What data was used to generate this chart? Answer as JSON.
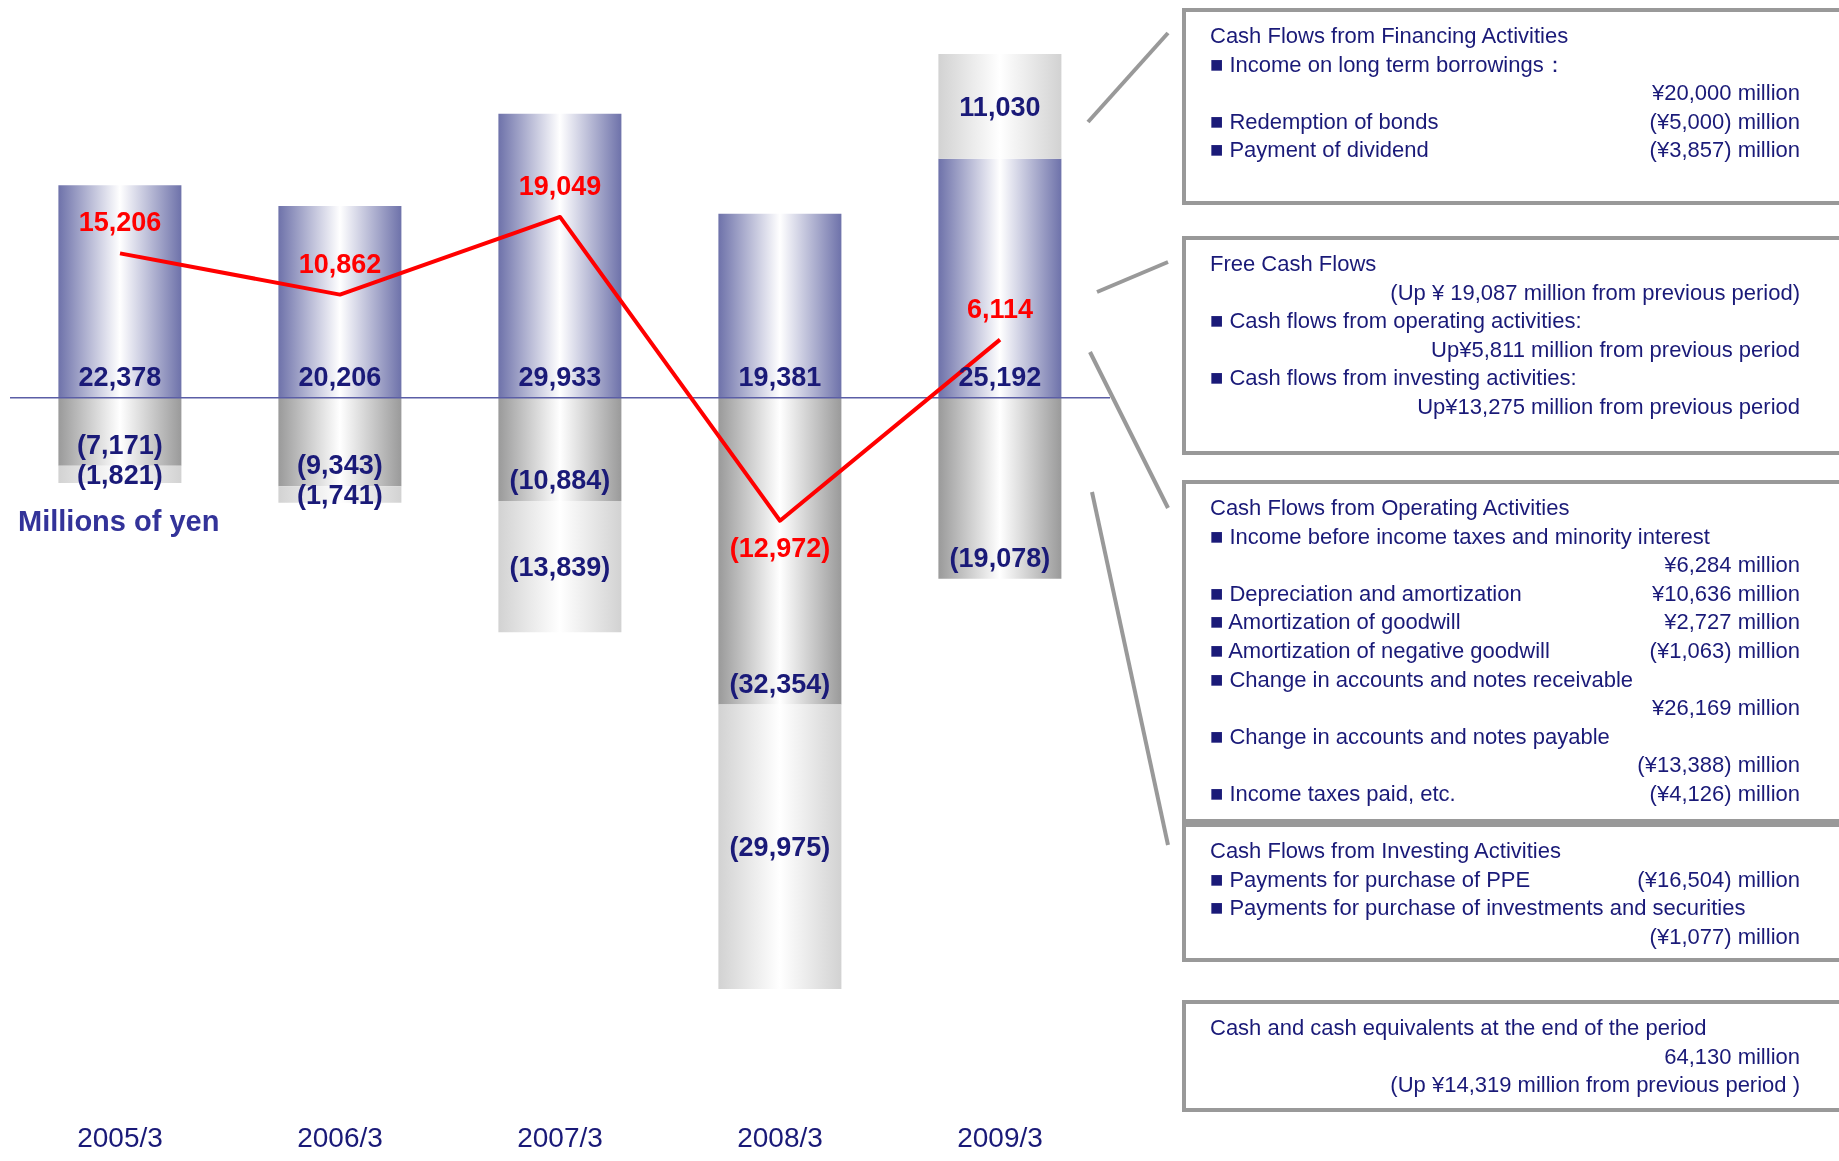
{
  "chart_data": {
    "type": "bar",
    "stacked": true,
    "tick_labels": "x",
    "ylabel": "Millions of yen",
    "categories": [
      "2005/3",
      "2006/3",
      "2007/3",
      "2008/3",
      "2009/3"
    ],
    "series": [
      {
        "color": "#6e72aa",
        "values": [
          22378,
          20206,
          29933,
          19381,
          25192
        ],
        "value_labels": [
          "22,378",
          "20,206",
          "29,933",
          "19,381",
          "25,192"
        ]
      },
      {
        "color": "#9a9a9a",
        "values": [
          -7171,
          -9343,
          -10884,
          -32354,
          -19078
        ],
        "value_labels": [
          "(7,171)",
          "(9,343)",
          "(10,884)",
          "(32,354)",
          "(19,078)"
        ]
      },
      {
        "color": "#d2d2d2",
        "values": [
          -1821,
          -1741,
          -13839,
          -29975,
          11030
        ],
        "value_labels": [
          "(1,821)",
          "(1,741)",
          "(13,839)",
          "(29,975)",
          "11,030"
        ]
      },
      {
        "type": "line",
        "color": "#ff0000",
        "values": [
          15206,
          10862,
          19049,
          -12972,
          6114
        ],
        "value_labels": [
          "15,206",
          "10,862",
          "19,049",
          "(12,972)",
          "6,114"
        ]
      }
    ],
    "ref_lines": [
      {
        "axis": "y",
        "value": 0,
        "color": "#5b5ea6"
      }
    ],
    "annotations": [
      "Cash Flows from Financing Activities\n \n■ Income on long term borrowings：\n\t¥20,000 million\n■ Redemption of bonds\t(¥5,000) million\n■ Payment of dividend\t(¥3,857) million",
      "Free Cash Flows\n\t(Up ¥ 19,087 million from previous period)\n■ Cash flows from operating activities:\n\tUp¥5,811 million from previous period\n■ Cash flows from investing activities:\n\tUp¥13,275 million from previous period",
      "Cash Flows from Operating Activities\n■ Income before income taxes and minority interest\n\t¥6,284 million\n■ Depreciation and amortization\t¥10,636 million\n■ Amortization of goodwill\t¥2,727 million\n■ Amortization of negative goodwill\t(¥1,063) million\n■ Change in accounts and notes receivable\n\t¥26,169 million\n■ Change in accounts and notes payable\n\t(¥13,388) million\n■ Income taxes paid, etc.\t(¥4,126) million",
      "Cash Flows from Investing Activities\n■ Payments for purchase of PPE\t(¥16,504) million\n■ Payments for purchase of investments and securities\n\t(¥1,077) million",
      "Cash and cash equivalents at the end of the period\n\t64,130 million\n\t(Up ¥14,319 million from previous period )"
    ]
  }
}
